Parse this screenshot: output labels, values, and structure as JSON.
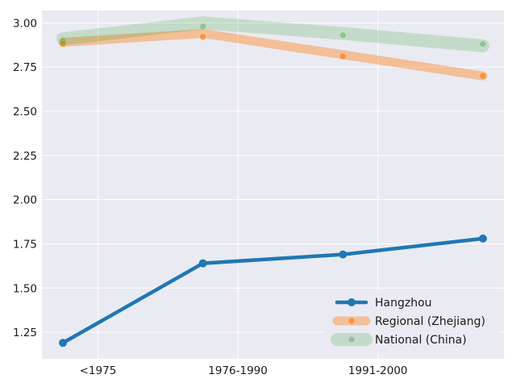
{
  "chart_data": {
    "type": "line",
    "title": "",
    "xlabel": "",
    "ylabel": "",
    "x_positions": [
      0,
      1,
      2,
      3
    ],
    "xlim": [
      -0.15,
      3.15
    ],
    "xticks": [
      {
        "pos": 0.25,
        "label": "<1975"
      },
      {
        "pos": 1.25,
        "label": "1976-1990"
      },
      {
        "pos": 2.25,
        "label": "1991-2000"
      }
    ],
    "ylim": [
      1.1,
      3.07
    ],
    "yticks": [
      1.25,
      1.5,
      1.75,
      2.0,
      2.25,
      2.5,
      2.75,
      3.0
    ],
    "ytick_labels": [
      "1.25",
      "1.50",
      "1.75",
      "2.00",
      "2.25",
      "2.50",
      "2.75",
      "3.00"
    ],
    "grid": true,
    "legend_position": "lower-right",
    "series": [
      {
        "name": "Hangzhou",
        "values": [
          1.19,
          1.64,
          1.69,
          1.78
        ],
        "color": "#1f77b4",
        "style": "main"
      },
      {
        "name": "Regional (Zhejiang)",
        "values": [
          2.88,
          2.92,
          2.81,
          2.7
        ],
        "band_values": [
          2.89,
          2.94,
          2.82,
          2.7
        ],
        "color": "#ff7f0e",
        "style": "band"
      },
      {
        "name": "National (China)",
        "values": [
          2.9,
          2.98,
          2.93,
          2.88
        ],
        "band_values": [
          2.91,
          3.0,
          2.94,
          2.87
        ],
        "color": "#2ca02c",
        "style": "band-wide"
      }
    ]
  }
}
